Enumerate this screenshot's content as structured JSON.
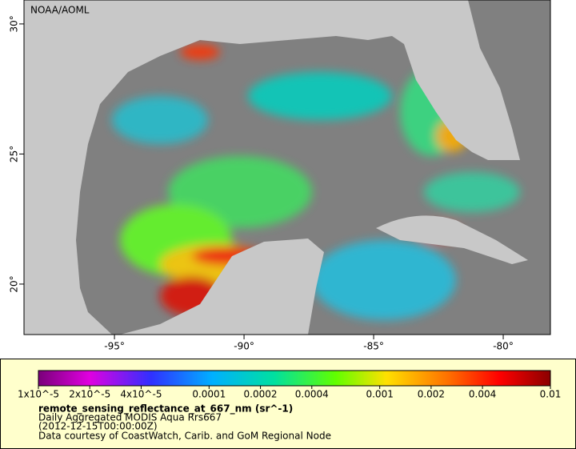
{
  "map": {
    "label": "NOAA/AOML",
    "xlim": [
      -98.49,
      -78.18
    ],
    "ylim": [
      18.06,
      30.92
    ],
    "xticks": [
      {
        "value": -95,
        "label": "-95°"
      },
      {
        "value": -90,
        "label": "-90°"
      },
      {
        "value": -85,
        "label": "-85°"
      },
      {
        "value": -80,
        "label": "-80°"
      }
    ],
    "yticks": [
      {
        "value": 20,
        "label": "20°"
      },
      {
        "value": 25,
        "label": "25°"
      },
      {
        "value": 30,
        "label": "30°"
      }
    ]
  },
  "colorbar": {
    "log": true,
    "lim": [
      1e-05,
      0.01
    ],
    "ticks": [
      {
        "value": 1e-05,
        "label": "1x10^-5"
      },
      {
        "value": 2e-05,
        "label": "2x10^-5"
      },
      {
        "value": 4e-05,
        "label": "4x10^-5"
      },
      0.0001,
      0.0002,
      0.0004,
      0.001,
      0.002,
      0.004,
      0.01
    ]
  },
  "legend": {
    "variable": "remote_sensing_reflectance_at_667_nm (sr^-1)",
    "dataset": "Daily Aggregated MODIS Aqua Rrs667",
    "time": "(2012-12-15T00:00:00Z)",
    "credit": "Data courtesy of CoastWatch, Carib. and GoM Regional Node"
  }
}
